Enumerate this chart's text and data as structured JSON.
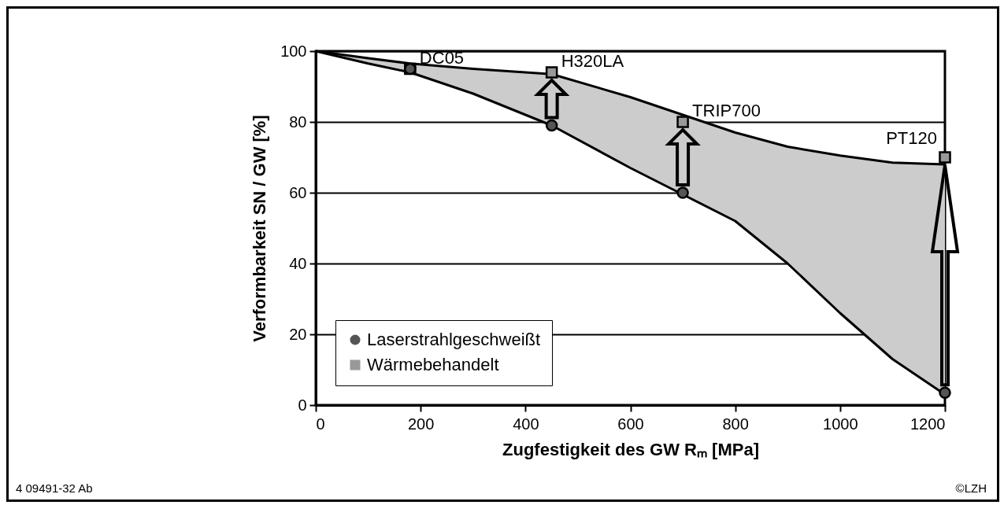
{
  "chart_data": {
    "type": "scatter",
    "xlabel": "Zugfestigkeit des GW Rₘ [MPa]",
    "ylabel": "Verformbarkeit SN / GW [%]",
    "xlim": [
      0,
      1200
    ],
    "xticks": [
      0,
      200,
      400,
      600,
      800,
      1000,
      1200
    ],
    "ylim": [
      0,
      100
    ],
    "yticks": [
      0,
      20,
      40,
      60,
      80,
      100
    ],
    "grid": "y",
    "legend": "bottom left",
    "series": [
      {
        "type": "line",
        "color": "#000000",
        "x": [
          0,
          100,
          180,
          300,
          450,
          600,
          700,
          800,
          900,
          1000,
          1100,
          1200
        ],
        "values": [
          100,
          98,
          96.5,
          95,
          93.5,
          87,
          82,
          77,
          73,
          70.5,
          68.5,
          68
        ]
      },
      {
        "type": "line",
        "color": "#000000",
        "x": [
          0,
          100,
          180,
          300,
          450,
          600,
          700,
          800,
          900,
          1000,
          1100,
          1200
        ],
        "values": [
          100,
          96.5,
          94,
          88,
          79,
          67,
          59.5,
          52,
          40,
          26,
          13,
          3
        ]
      },
      {
        "name": "Laserstrahlgeschweißt",
        "color": "#555555",
        "marker": "circle",
        "x": [
          180,
          450,
          700,
          1200
        ],
        "values": [
          95,
          79,
          60,
          3.5
        ]
      },
      {
        "name": "Wärmebehandelt",
        "color": "#999999",
        "marker": "square",
        "x": [
          180,
          450,
          700,
          1200
        ],
        "values": [
          95,
          94,
          80,
          70
        ]
      }
    ],
    "annotations": [
      {
        "text": "DC05",
        "x": 180,
        "y": 95
      },
      {
        "text": "H320LA",
        "x": 450,
        "y": 94
      },
      {
        "text": "TRIP700",
        "x": 700,
        "y": 80
      },
      {
        "text": "PT120",
        "x": 1200,
        "y": 70
      },
      "4 09491-32 Ab",
      "©LZH"
    ]
  }
}
